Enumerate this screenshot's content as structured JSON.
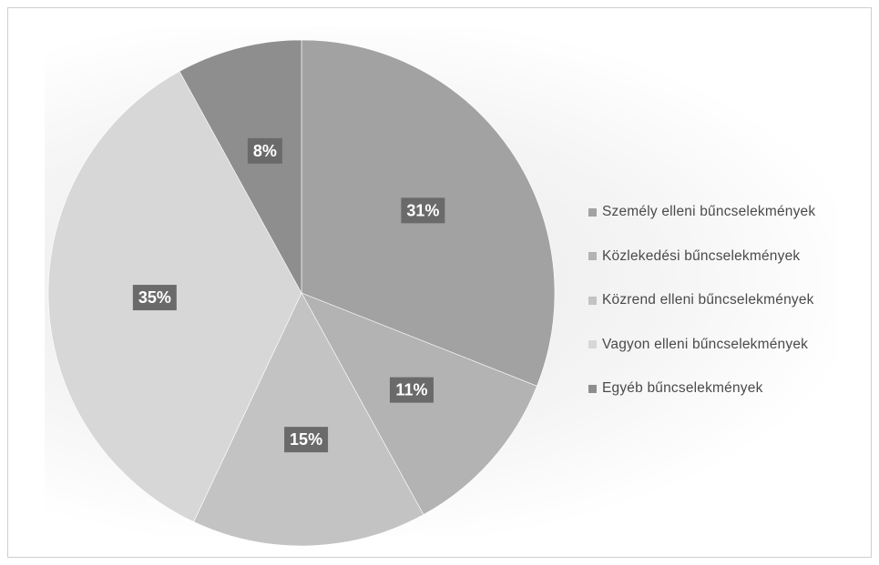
{
  "chart_data": {
    "type": "pie",
    "title": "",
    "start_angle_deg": 0,
    "direction": "clockwise",
    "legend_position": "right",
    "slices": [
      {
        "label": "Személy elleni bűncselekmények",
        "value": 31,
        "display": "31%",
        "color": "#a2a2a2"
      },
      {
        "label": "Közlekedési bűncselekmények",
        "value": 11,
        "display": "11%",
        "color": "#b3b3b3"
      },
      {
        "label": "Közrend elleni bűncselekmények",
        "value": 15,
        "display": "15%",
        "color": "#c3c3c3"
      },
      {
        "label": "Vagyon elleni bűncselekmények",
        "value": 35,
        "display": "35%",
        "color": "#d7d7d7"
      },
      {
        "label": "Egyéb bűncselekmények",
        "value": 8,
        "display": "8%",
        "color": "#8e8e8e"
      }
    ]
  }
}
